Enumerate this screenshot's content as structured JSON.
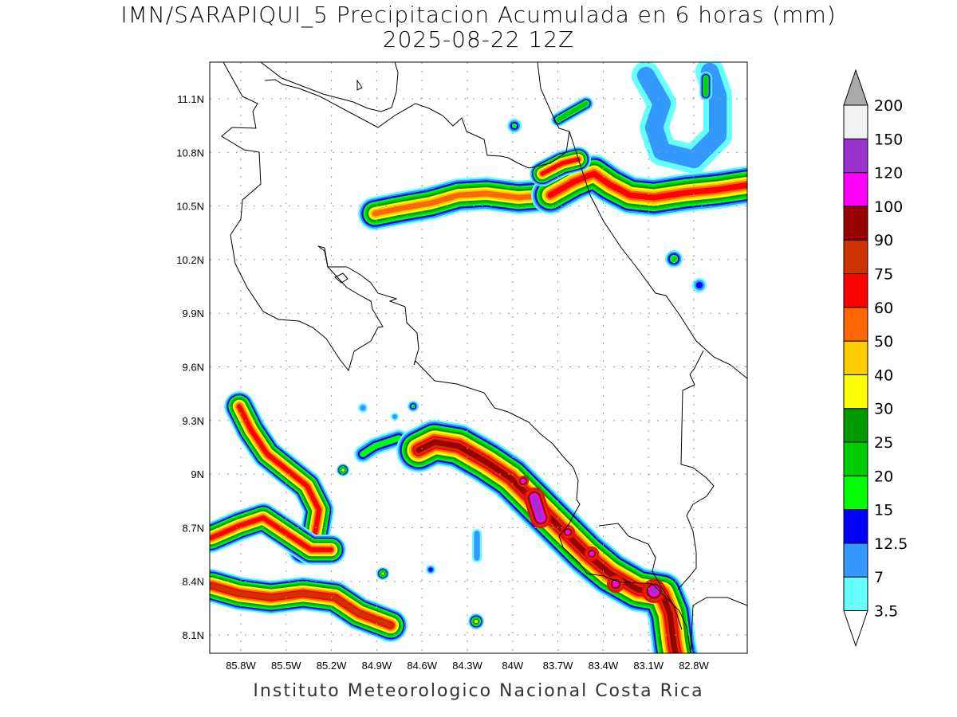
{
  "title": {
    "line1": "IMN/SARAPIQUI_5 Precipitacion Acumulada en 6 horas (mm)",
    "line2": "2025-08-22 12Z"
  },
  "footer": "Instituto Meteorologico Nacional Costa Rica",
  "map": {
    "lon_labels": [
      "85.8W",
      "85.5W",
      "85.2W",
      "84.9W",
      "84.6W",
      "84.3W",
      "84W",
      "83.7W",
      "83.4W",
      "83.1W",
      "82.8W"
    ],
    "lat_labels": [
      "11.1N",
      "10.8N",
      "10.5N",
      "10.2N",
      "9.9N",
      "9.6N",
      "9.3N",
      "9N",
      "8.7N",
      "8.4N",
      "8.1N"
    ],
    "grid": "dotted"
  },
  "colorbar": {
    "labels": [
      "3.5",
      "7",
      "12.5",
      "15",
      "20",
      "25",
      "30",
      "40",
      "50",
      "60",
      "75",
      "90",
      "100",
      "120",
      "150",
      "200"
    ],
    "colors": [
      "#66ffff",
      "#3399ff",
      "#0000ff",
      "#00ff00",
      "#00cc00",
      "#009900",
      "#ffff00",
      "#ffcc00",
      "#ff6600",
      "#ff0000",
      "#cc3300",
      "#990000",
      "#ff00ff",
      "#9933cc",
      "#f2f2f2"
    ],
    "below_color": "#ffffff",
    "above_color": "#aaaaaa"
  }
}
